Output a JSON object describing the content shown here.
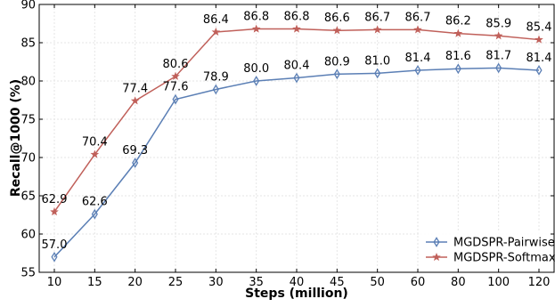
{
  "chart_data": {
    "type": "line",
    "title": "",
    "xlabel": "Steps (million)",
    "ylabel": "Recall@1000 (%)",
    "categories": [
      "10",
      "15",
      "20",
      "25",
      "30",
      "35",
      "40",
      "45",
      "50",
      "60",
      "80",
      "100",
      "120"
    ],
    "ylim": [
      55,
      90
    ],
    "yticks": [
      "55",
      "60",
      "65",
      "70",
      "75",
      "80",
      "85",
      "90"
    ],
    "grid": true,
    "legend_position": "bottom-right",
    "series": [
      {
        "name": "MGDSPR-Pairwise",
        "color": "#5b7fb5",
        "marker": "thin-diamond",
        "values": [
          57.0,
          62.6,
          69.3,
          77.6,
          78.9,
          80.0,
          80.4,
          80.9,
          81.0,
          81.4,
          81.6,
          81.7,
          81.4
        ],
        "labels": [
          "57.0",
          "62.6",
          "69.3",
          "77.6",
          "78.9",
          "80.0",
          "80.4",
          "80.9",
          "81.0",
          "81.4",
          "81.6",
          "81.7",
          "81.4"
        ]
      },
      {
        "name": "MGDSPR-Softmax",
        "color": "#c0605a",
        "marker": "star",
        "values": [
          62.9,
          70.4,
          77.4,
          80.6,
          86.4,
          86.8,
          86.8,
          86.6,
          86.7,
          86.7,
          86.2,
          85.9,
          85.4
        ],
        "labels": [
          "62.9",
          "70.4",
          "77.4",
          "80.6",
          "86.4",
          "86.8",
          "86.8",
          "86.6",
          "86.7",
          "86.7",
          "86.2",
          "85.9",
          "85.4"
        ]
      }
    ]
  }
}
